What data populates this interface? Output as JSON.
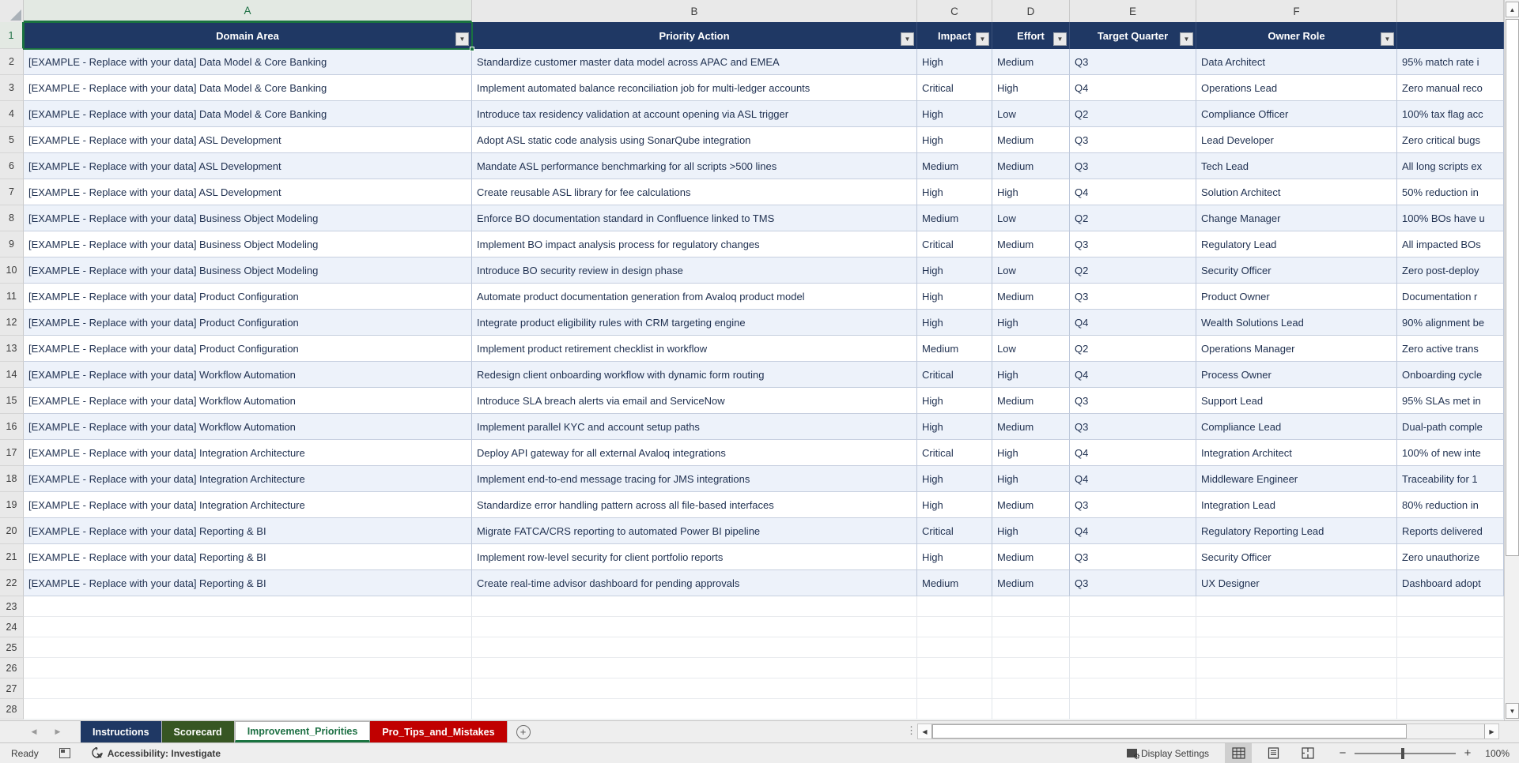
{
  "grid": {
    "column_letters": [
      "A",
      "B",
      "C",
      "D",
      "E",
      "F",
      ""
    ],
    "row_numbers": [
      "1",
      "2",
      "3",
      "4",
      "5",
      "6",
      "7",
      "8",
      "9",
      "10",
      "11",
      "12",
      "13",
      "14",
      "15",
      "16",
      "17",
      "18",
      "19",
      "20",
      "21",
      "22",
      "23",
      "24",
      "25",
      "26",
      "27",
      "28"
    ]
  },
  "table": {
    "headers": [
      "Domain Area",
      "Priority Action",
      "Impact",
      "Effort",
      "Target Quarter",
      "Owner Role",
      ""
    ],
    "rows": [
      {
        "domain": "[EXAMPLE - Replace with your data] Data Model & Core Banking",
        "action": "Standardize customer master data model across APAC and EMEA",
        "impact": "High",
        "effort": "Medium",
        "quarter": "Q3",
        "owner": "Data Architect",
        "metric": "95% match rate i"
      },
      {
        "domain": "[EXAMPLE - Replace with your data] Data Model & Core Banking",
        "action": "Implement automated balance reconciliation job for multi-ledger accounts",
        "impact": "Critical",
        "effort": "High",
        "quarter": "Q4",
        "owner": "Operations Lead",
        "metric": "Zero manual reco"
      },
      {
        "domain": "[EXAMPLE - Replace with your data] Data Model & Core Banking",
        "action": "Introduce tax residency validation at account opening via ASL trigger",
        "impact": "High",
        "effort": "Low",
        "quarter": "Q2",
        "owner": "Compliance Officer",
        "metric": "100% tax flag acc"
      },
      {
        "domain": "[EXAMPLE - Replace with your data] ASL Development",
        "action": "Adopt ASL static code analysis using SonarQube integration",
        "impact": "High",
        "effort": "Medium",
        "quarter": "Q3",
        "owner": "Lead Developer",
        "metric": "Zero critical bugs"
      },
      {
        "domain": "[EXAMPLE - Replace with your data] ASL Development",
        "action": "Mandate ASL performance benchmarking for all scripts >500 lines",
        "impact": "Medium",
        "effort": "Medium",
        "quarter": "Q3",
        "owner": "Tech Lead",
        "metric": "All long scripts ex"
      },
      {
        "domain": "[EXAMPLE - Replace with your data] ASL Development",
        "action": "Create reusable ASL library for fee calculations",
        "impact": "High",
        "effort": "High",
        "quarter": "Q4",
        "owner": "Solution Architect",
        "metric": "50% reduction in"
      },
      {
        "domain": "[EXAMPLE - Replace with your data] Business Object Modeling",
        "action": "Enforce BO documentation standard in Confluence linked to TMS",
        "impact": "Medium",
        "effort": "Low",
        "quarter": "Q2",
        "owner": "Change Manager",
        "metric": "100% BOs have u"
      },
      {
        "domain": "[EXAMPLE - Replace with your data] Business Object Modeling",
        "action": "Implement BO impact analysis process for regulatory changes",
        "impact": "Critical",
        "effort": "Medium",
        "quarter": "Q3",
        "owner": "Regulatory Lead",
        "metric": "All impacted BOs"
      },
      {
        "domain": "[EXAMPLE - Replace with your data] Business Object Modeling",
        "action": "Introduce BO security review in design phase",
        "impact": "High",
        "effort": "Low",
        "quarter": "Q2",
        "owner": "Security Officer",
        "metric": "Zero post-deploy"
      },
      {
        "domain": "[EXAMPLE - Replace with your data] Product Configuration",
        "action": "Automate product documentation generation from Avaloq product model",
        "impact": "High",
        "effort": "Medium",
        "quarter": "Q3",
        "owner": "Product Owner",
        "metric": "Documentation r"
      },
      {
        "domain": "[EXAMPLE - Replace with your data] Product Configuration",
        "action": "Integrate product eligibility rules with CRM targeting engine",
        "impact": "High",
        "effort": "High",
        "quarter": "Q4",
        "owner": "Wealth Solutions Lead",
        "metric": "90% alignment be"
      },
      {
        "domain": "[EXAMPLE - Replace with your data] Product Configuration",
        "action": "Implement product retirement checklist in workflow",
        "impact": "Medium",
        "effort": "Low",
        "quarter": "Q2",
        "owner": "Operations Manager",
        "metric": "Zero active trans"
      },
      {
        "domain": "[EXAMPLE - Replace with your data] Workflow Automation",
        "action": "Redesign client onboarding workflow with dynamic form routing",
        "impact": "Critical",
        "effort": "High",
        "quarter": "Q4",
        "owner": "Process Owner",
        "metric": "Onboarding cycle"
      },
      {
        "domain": "[EXAMPLE - Replace with your data] Workflow Automation",
        "action": "Introduce SLA breach alerts via email and ServiceNow",
        "impact": "High",
        "effort": "Medium",
        "quarter": "Q3",
        "owner": "Support Lead",
        "metric": "95% SLAs met in"
      },
      {
        "domain": "[EXAMPLE - Replace with your data] Workflow Automation",
        "action": "Implement parallel KYC and account setup paths",
        "impact": "High",
        "effort": "Medium",
        "quarter": "Q3",
        "owner": "Compliance Lead",
        "metric": "Dual-path comple"
      },
      {
        "domain": "[EXAMPLE - Replace with your data] Integration Architecture",
        "action": "Deploy API gateway for all external Avaloq integrations",
        "impact": "Critical",
        "effort": "High",
        "quarter": "Q4",
        "owner": "Integration Architect",
        "metric": "100% of new inte"
      },
      {
        "domain": "[EXAMPLE - Replace with your data] Integration Architecture",
        "action": "Implement end-to-end message tracing for JMS integrations",
        "impact": "High",
        "effort": "High",
        "quarter": "Q4",
        "owner": "Middleware Engineer",
        "metric": "Traceability for 1"
      },
      {
        "domain": "[EXAMPLE - Replace with your data] Integration Architecture",
        "action": "Standardize error handling pattern across all file-based interfaces",
        "impact": "High",
        "effort": "Medium",
        "quarter": "Q3",
        "owner": "Integration Lead",
        "metric": "80% reduction in"
      },
      {
        "domain": "[EXAMPLE - Replace with your data] Reporting & BI",
        "action": "Migrate FATCA/CRS reporting to automated Power BI pipeline",
        "impact": "Critical",
        "effort": "High",
        "quarter": "Q4",
        "owner": "Regulatory Reporting Lead",
        "metric": "Reports delivered"
      },
      {
        "domain": "[EXAMPLE - Replace with your data] Reporting & BI",
        "action": "Implement row-level security for client portfolio reports",
        "impact": "High",
        "effort": "Medium",
        "quarter": "Q3",
        "owner": "Security Officer",
        "metric": "Zero unauthorize"
      },
      {
        "domain": "[EXAMPLE - Replace with your data] Reporting & BI",
        "action": "Create real-time advisor dashboard for pending approvals",
        "impact": "Medium",
        "effort": "Medium",
        "quarter": "Q3",
        "owner": "UX Designer",
        "metric": "Dashboard adopt"
      }
    ]
  },
  "sheet_tabs": [
    {
      "label": "Instructions",
      "bg": "#1f3864",
      "fg": "#ffffff",
      "active": false
    },
    {
      "label": "Scorecard",
      "bg": "#375623",
      "fg": "#ffffff",
      "active": false
    },
    {
      "label": "Improvement_Priorities",
      "bg": "#ffffff",
      "fg": "#1d7044",
      "active": true
    },
    {
      "label": "Pro_Tips_and_Mistakes",
      "bg": "#c00000",
      "fg": "#ffffff",
      "active": false
    }
  ],
  "status_bar": {
    "mode": "Ready",
    "accessibility": "Accessibility: Investigate",
    "display_settings": "Display Settings",
    "zoom_level": "100%"
  },
  "colors": {
    "header_bg": "#1f3864",
    "band_row": "#edf2fa",
    "selection_green": "#1a7340",
    "tab_navy": "#1f3864",
    "tab_green": "#375623",
    "tab_red": "#c00000",
    "active_tab_text": "#1d7044"
  }
}
